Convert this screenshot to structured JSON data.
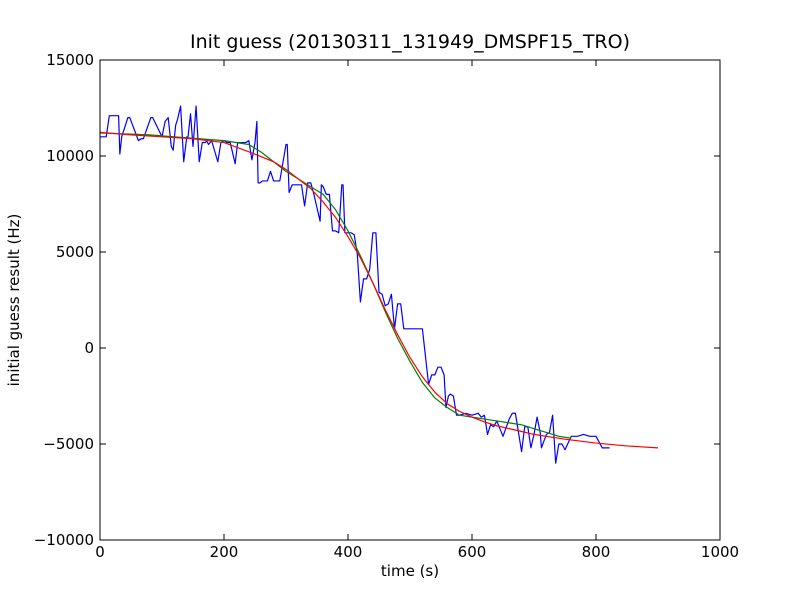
{
  "chart_data": {
    "type": "line",
    "title": "Init guess (20130311_131949_DMSPF15_TRO)",
    "xlabel": "time (s)",
    "ylabel": "initial guess result (Hz)",
    "xlim": [
      0,
      1000
    ],
    "ylim": [
      -10000,
      15000
    ],
    "xticks": [
      0,
      200,
      400,
      600,
      800,
      1000
    ],
    "xtick_labels": [
      "0",
      "200",
      "400",
      "600",
      "800",
      "1000"
    ],
    "yticks": [
      -10000,
      -5000,
      0,
      5000,
      10000,
      15000
    ],
    "ytick_labels": [
      "−10000",
      "−5000",
      "0",
      "5000",
      "10000",
      "15000"
    ],
    "grid": false,
    "legend": "none",
    "series": [
      {
        "color": "#0000ff",
        "x": [
          0,
          10,
          15,
          30,
          32,
          35,
          45,
          48,
          62,
          66,
          70,
          82,
          85,
          100,
          105,
          110,
          115,
          118,
          122,
          125,
          130,
          135,
          140,
          142,
          146,
          150,
          155,
          160,
          165,
          170,
          172,
          175,
          180,
          190,
          195,
          200,
          205,
          210,
          218,
          222,
          228,
          235,
          240,
          245,
          250,
          253,
          255,
          258,
          262,
          270,
          275,
          280,
          290,
          300,
          302,
          305,
          310,
          315,
          320,
          325,
          330,
          335,
          340,
          345,
          355,
          357,
          360,
          365,
          370,
          375,
          380,
          385,
          390,
          392,
          395,
          400,
          402,
          405,
          410,
          415,
          420,
          425,
          430,
          435,
          440,
          445,
          450,
          455,
          460,
          465,
          470,
          475,
          480,
          485,
          490,
          495,
          500,
          505,
          510,
          515,
          518,
          520,
          530,
          535,
          540,
          545,
          550,
          555,
          558,
          562,
          565,
          570,
          575,
          580,
          590,
          600,
          610,
          615,
          620,
          625,
          630,
          635,
          640,
          650,
          660,
          665,
          670,
          680,
          685,
          690,
          695,
          700,
          705,
          710,
          712,
          720,
          725,
          730,
          735,
          740,
          745,
          750,
          760,
          765,
          770,
          780,
          790,
          800,
          810,
          820,
          822
        ],
        "y": [
          11000,
          11000,
          12100,
          12100,
          10100,
          11000,
          12000,
          12000,
          10800,
          10900,
          10900,
          12000,
          12000,
          11000,
          11800,
          12000,
          10500,
          10300,
          11600,
          11900,
          12600,
          9700,
          11000,
          11000,
          12200,
          10500,
          12600,
          9700,
          10700,
          10700,
          10800,
          10600,
          10800,
          9700,
          10700,
          10800,
          10700,
          10700,
          9600,
          10700,
          10700,
          10700,
          10800,
          9800,
          10700,
          11800,
          8600,
          8600,
          8700,
          8700,
          9200,
          8700,
          8700,
          10600,
          10600,
          8100,
          8500,
          8500,
          8500,
          8500,
          7400,
          8600,
          8600,
          8000,
          6600,
          8500,
          8400,
          8000,
          8000,
          6100,
          6100,
          6000,
          8500,
          8500,
          6000,
          6000,
          6000,
          6000,
          5900,
          4900,
          2400,
          3600,
          3600,
          4100,
          6000,
          6000,
          2900,
          2800,
          2200,
          2300,
          2800,
          1000,
          2300,
          2300,
          1000,
          1000,
          1000,
          1000,
          1000,
          1000,
          1000,
          1000,
          -1900,
          -1400,
          -1400,
          -1000,
          -1000,
          -1400,
          -3100,
          -2500,
          -2400,
          -2500,
          -3500,
          -3500,
          -3400,
          -3500,
          -3400,
          -3600,
          -3500,
          -4500,
          -4000,
          -4100,
          -3800,
          -4600,
          -3700,
          -3400,
          -3400,
          -5400,
          -4100,
          -4100,
          -5200,
          -4500,
          -3600,
          -4400,
          -5200,
          -4500,
          -4400,
          -3500,
          -6000,
          -5000,
          -5000,
          -5300,
          -4600,
          -4600,
          -4600,
          -4500,
          -4600,
          -4600,
          -5200,
          -5200,
          -5200
        ]
      },
      {
        "color": "#008000",
        "x": [
          0,
          40,
          80,
          120,
          160,
          200,
          240,
          260,
          280,
          300,
          320,
          340,
          360,
          380,
          400,
          420,
          440,
          460,
          480,
          500,
          520,
          540,
          560,
          580,
          600,
          620,
          640,
          660,
          680,
          700,
          720,
          740,
          760
        ],
        "y": [
          11200,
          11150,
          11100,
          11000,
          10900,
          10800,
          10600,
          10200,
          9700,
          9200,
          8800,
          8400,
          8000,
          7200,
          6100,
          4800,
          3400,
          1900,
          500,
          -700,
          -1800,
          -2600,
          -3100,
          -3500,
          -3600,
          -3700,
          -3800,
          -3900,
          -4000,
          -4200,
          -4400,
          -4600,
          -4700
        ]
      },
      {
        "color": "#ff0000",
        "x": [
          0,
          50,
          100,
          150,
          200,
          250,
          280,
          300,
          320,
          340,
          360,
          380,
          400,
          420,
          440,
          460,
          480,
          500,
          520,
          540,
          560,
          580,
          600,
          620,
          640,
          660,
          680,
          700,
          720,
          750,
          800,
          850,
          900
        ],
        "y": [
          11230,
          11100,
          11000,
          10900,
          10700,
          10100,
          9700,
          9300,
          8800,
          8300,
          7600,
          6800,
          5800,
          4700,
          3400,
          2000,
          700,
          -500,
          -1500,
          -2300,
          -2900,
          -3300,
          -3600,
          -3850,
          -4050,
          -4200,
          -4350,
          -4500,
          -4600,
          -4750,
          -4950,
          -5100,
          -5200
        ]
      }
    ]
  }
}
